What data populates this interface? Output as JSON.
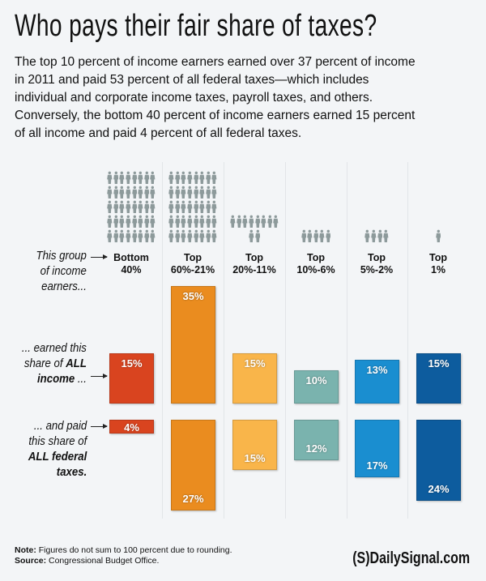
{
  "title": "Who pays their fair share of taxes?",
  "intro_lines": [
    "The top 10 percent of income earners earned over 37 percent of income",
    "in 2011 and paid 53 percent of all federal taxes—which includes",
    "individual and corporate income taxes, payroll taxes, and others.",
    "Conversely, the bottom 40 percent of income earners earned 15 percent",
    "of all income and paid 4 percent of all federal taxes."
  ],
  "row_labels": {
    "group": [
      "This group",
      "of income",
      "earners..."
    ],
    "income": {
      "line1": "... earned this",
      "line2_pre": "share of ",
      "line2_bold": "ALL",
      "line3_bold": "income",
      "line3_post": " ..."
    },
    "taxes": {
      "line1": "... and paid",
      "line2": "this share of",
      "line3_bold": "ALL federal",
      "line4_bold": "taxes."
    }
  },
  "person_icon": "person-icon",
  "person_color": "#8d9a9b",
  "chart_data": {
    "type": "bar",
    "categories": [
      {
        "line1": "Bottom",
        "line2": "40%",
        "people": 40,
        "color": "#d9441f"
      },
      {
        "line1": "Top",
        "line2": "60%-21%",
        "people": 40,
        "color": "#ea8c1f"
      },
      {
        "line1": "Top",
        "line2": "20%-11%",
        "people": 10,
        "color": "#f9b54a"
      },
      {
        "line1": "Top",
        "line2": "10%-6%",
        "people": 5,
        "color": "#7ab3ae"
      },
      {
        "line1": "Top",
        "line2": "5%-2%",
        "people": 4,
        "color": "#1a8ed0"
      },
      {
        "line1": "Top",
        "line2": "1%",
        "people": 1,
        "color": "#0d5c9e"
      }
    ],
    "series": [
      {
        "name": "share of ALL income",
        "values": [
          15,
          35,
          15,
          10,
          13,
          15
        ],
        "labels": [
          "15%",
          "35%",
          "15%",
          "10%",
          "13%",
          "15%"
        ]
      },
      {
        "name": "share of ALL federal taxes",
        "values": [
          4,
          27,
          15,
          12,
          17,
          24
        ],
        "labels": [
          "4%",
          "27%",
          "15%",
          "12%",
          "17%",
          "24%"
        ]
      }
    ],
    "unit": "percent"
  },
  "footer": {
    "note_label": "Note:",
    "note": " Figures do not sum to 100 percent due to rounding.",
    "source_label": "Source:",
    "source": " Congressional Budget Office."
  },
  "logo": "(S)DailySignal.com"
}
